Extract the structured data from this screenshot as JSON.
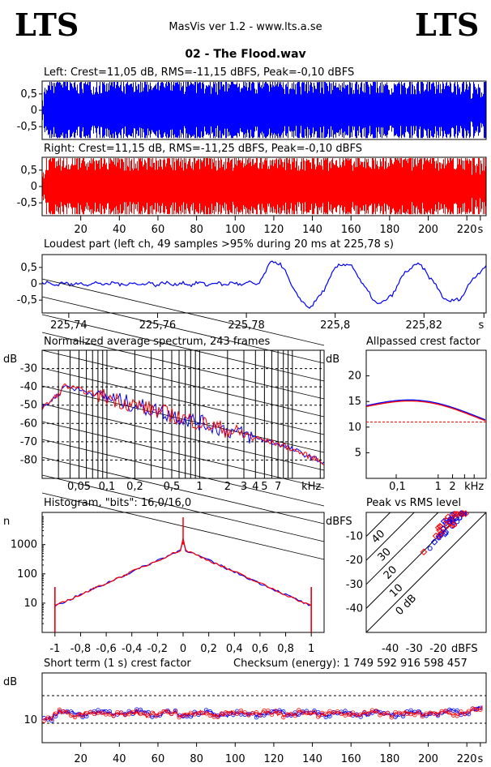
{
  "header": {
    "logo_left": "LTS",
    "logo_right": "LTS",
    "app_title": "MasVis ver 1.2 - www.lts.a.se",
    "file_name": "02 - The Flood.wav"
  },
  "colors": {
    "left": "#0000ff",
    "right": "#ff0000",
    "grid": "#000000"
  },
  "chart_data": [
    {
      "id": "left_waveform",
      "type": "area",
      "title": "Left: Crest=11,05 dB, RMS=-11,15 dBFS, Peak=-0,10 dBFS",
      "yticks": [
        "0,5",
        "0",
        "-0,5"
      ],
      "ylim": [
        -1,
        1
      ],
      "xlim": [
        0,
        230
      ],
      "series": [
        {
          "values": []
        }
      ]
    },
    {
      "id": "right_waveform",
      "type": "area",
      "title": "Right: Crest=11,15 dB, RMS=-11,25 dBFS, Peak=-0,10 dBFS",
      "yticks": [
        "0,5",
        "0",
        "-0,5"
      ],
      "xticks": [
        "20",
        "40",
        "60",
        "80",
        "100",
        "120",
        "140",
        "160",
        "180",
        "200",
        "220",
        "s"
      ],
      "ylim": [
        -1,
        1
      ],
      "xlim": [
        0,
        230
      ]
    },
    {
      "id": "loudest_part",
      "type": "line",
      "title": "Loudest part (left  ch, 49 samples >95% during 20 ms at 225,78 s)",
      "yticks": [
        "0,5",
        "0",
        "-0,5"
      ],
      "xticks": [
        "225,74",
        "225,76",
        "225,78",
        "225,8",
        "225,82",
        "s"
      ],
      "xlim": [
        225.734,
        225.834
      ],
      "ylim": [
        -1,
        1
      ]
    },
    {
      "id": "spectrum",
      "type": "line",
      "title": "Normalized average spectrum, 243 frames",
      "ylabel": "dB",
      "yticks": [
        "-30",
        "-40",
        "-50",
        "-60",
        "-70",
        "-80"
      ],
      "xticks": [
        "0,05",
        "0,1",
        "0,2",
        "0,5",
        "1",
        "2",
        "3",
        "4",
        "5",
        "7",
        "kHz"
      ],
      "xlim": [
        0.02,
        22
      ],
      "ylim": [
        -90,
        -20
      ]
    },
    {
      "id": "allpassed_crest",
      "type": "line",
      "title": "Allpassed crest factor",
      "ylabel": "dB",
      "yticks": [
        "20",
        "15",
        "10",
        "5"
      ],
      "xticks": [
        "0,1",
        "1",
        "2",
        "kHz"
      ],
      "ylim": [
        0,
        25
      ],
      "reference_crest_db": 11
    },
    {
      "id": "histogram",
      "type": "line",
      "title": "Histogram, \"bits\": 16,0/16,0",
      "ylabel": "n",
      "yticks": [
        "1000",
        "100",
        "10"
      ],
      "xticks": [
        "-1",
        "-0,8",
        "-0,6",
        "-0,4",
        "-0,2",
        "0",
        "0,2",
        "0,4",
        "0,6",
        "0,8",
        "1"
      ],
      "xlim": [
        -1.1,
        1.1
      ]
    },
    {
      "id": "peak_vs_rms",
      "type": "scatter",
      "title": "Peak vs RMS level",
      "ylabel": "dBFS",
      "yticks": [
        "-10",
        "-20",
        "-30",
        "-40"
      ],
      "xticks": [
        "-40",
        "-30",
        "-20",
        "dBFS"
      ],
      "diagonal_labels": [
        "40",
        "30",
        "20",
        "10",
        "0 dB"
      ],
      "xlim": [
        -50,
        0
      ],
      "ylim": [
        -50,
        0
      ]
    },
    {
      "id": "short_term_crest",
      "type": "scatter",
      "title": "Short term (1 s) crest factor",
      "checksum": "Checksum (energy):  1 749 592 916 598 457",
      "ylabel": "dB",
      "yticks": [
        "10"
      ],
      "xticks": [
        "20",
        "40",
        "60",
        "80",
        "100",
        "120",
        "140",
        "160",
        "180",
        "200",
        "220",
        "s"
      ],
      "xlim": [
        0,
        230
      ]
    }
  ]
}
